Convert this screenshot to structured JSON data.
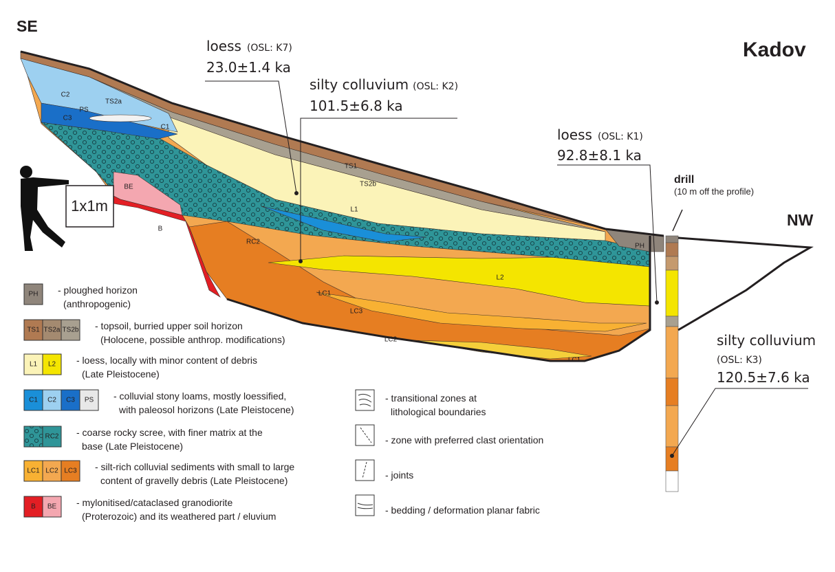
{
  "header": {
    "left": "SE",
    "right": "NW",
    "site": "Kadov"
  },
  "dates": [
    {
      "material": "loess",
      "sample": "(OSL: K7)",
      "age": "23.0±1.4 ka"
    },
    {
      "material": "silty colluvium",
      "sample": "(OSL: K2)",
      "age": "101.5±6.8 ka"
    },
    {
      "material": "loess",
      "sample": "(OSL: K1)",
      "age": "92.8±8.1 ka"
    },
    {
      "material": "silty colluvium",
      "sample": "(OSL: K3)",
      "age": "120.5±7.6 ka"
    }
  ],
  "drill": {
    "title": "drill",
    "note": "(10 m off the profile)"
  },
  "scale": "1x1m",
  "profile_labels": [
    "C2",
    "TS2a",
    "PS",
    "C3",
    "C1",
    "TS1",
    "TS2b",
    "L1",
    "BE",
    "B",
    "RC2",
    "PH",
    "L2",
    "LC1",
    "LC3",
    "LC2",
    "LC1"
  ],
  "legend": [
    {
      "swatches": [
        "PH"
      ],
      "lines": [
        "- ploughed horizon",
        "(anthropogenic)"
      ]
    },
    {
      "swatches": [
        "TS1",
        "TS2a",
        "TS2b"
      ],
      "lines": [
        "- topsoil, burried upper soil horizon",
        "(Holocene, possible anthrop. modifications)"
      ]
    },
    {
      "swatches": [
        "L1",
        "L2"
      ],
      "lines": [
        "- loess, locally with minor content of debris",
        "(Late Pleistocene)"
      ]
    },
    {
      "swatches": [
        "C1",
        "C2",
        "C3",
        "PS"
      ],
      "lines": [
        "- colluvial stony loams, mostly loessified,",
        "with paleosol horizons (Late Pleistocene)"
      ]
    },
    {
      "swatches": [
        "RC2"
      ],
      "lines": [
        "- coarse rocky scree, with finer matrix at the",
        "base (Late Pleistocene)"
      ]
    },
    {
      "swatches": [
        "LC1",
        "LC2",
        "LC3"
      ],
      "lines": [
        "- silt-rich colluvial sediments with small to large",
        "content of gravelly debris (Late Pleistocene)"
      ]
    },
    {
      "swatches": [
        "B",
        "BE"
      ],
      "lines": [
        "- mylonitised/cataclased granodiorite",
        "(Proterozoic) and its weathered part / eluvium"
      ]
    }
  ],
  "symbols_legend": [
    {
      "lines": [
        "- transitional zones at",
        "lithological boundaries"
      ]
    },
    {
      "lines": [
        "- zone with preferred clast orientation"
      ]
    },
    {
      "lines": [
        "- joints"
      ]
    },
    {
      "lines": [
        "- bedding / deformation planar fabric"
      ]
    }
  ]
}
